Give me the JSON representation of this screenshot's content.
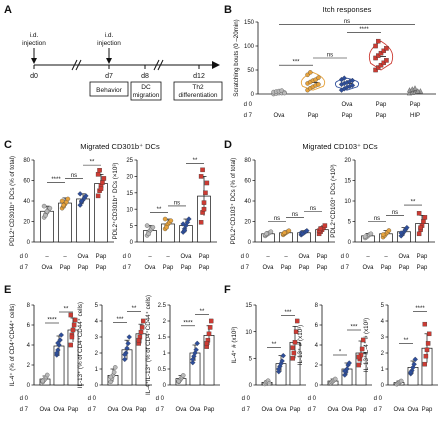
{
  "figure": {
    "panel_letters": [
      "A",
      "B",
      "C",
      "D",
      "E",
      "F"
    ],
    "timeline": {
      "injections": [
        {
          "label_lines": [
            "i.d.",
            "injection"
          ],
          "day": "d0"
        },
        {
          "label_lines": [
            "i.d.",
            "injection"
          ],
          "day": "d7"
        }
      ],
      "days": [
        "d0",
        "d7",
        "d8",
        "d12"
      ],
      "boxes": [
        {
          "lines": [
            "Behavior"
          ]
        },
        {
          "lines": [
            "DC",
            "migration"
          ]
        },
        {
          "lines": [
            "Th2",
            "differentiation"
          ]
        }
      ]
    },
    "colors": {
      "ova": "#b9b9b9",
      "pap_orange": "#e6a23c",
      "pap_blue": "#2e4e9b",
      "red": "#cc3b33",
      "hip": "#9a9a9a"
    },
    "row_labels": {
      "d0": "d 0",
      "d7": "d 7"
    }
  },
  "chart_data": [
    {
      "id": "B",
      "type": "scatter",
      "title": "Itch responses",
      "ylabel": "Scratching bouts (0 –20min)",
      "ylim": [
        0,
        150
      ],
      "yticks": [
        0,
        50,
        100,
        150
      ],
      "treatment_d0": [
        "",
        "",
        "Ova",
        "Pap",
        "Pap"
      ],
      "treatment_d7": [
        "Ova",
        "Pap",
        "Pap",
        "Pap",
        "HIP"
      ],
      "groups": [
        {
          "values": [
            0,
            1,
            2,
            2,
            3,
            4,
            5,
            6,
            7,
            2
          ],
          "mean": 3,
          "color": "ova",
          "shape": "circle",
          "violin": false
        },
        {
          "values": [
            8,
            12,
            15,
            18,
            20,
            22,
            25,
            28,
            30,
            34,
            40,
            45
          ],
          "mean": 24,
          "color": "pap_orange",
          "shape": "circle",
          "violin": true
        },
        {
          "values": [
            8,
            11,
            14,
            16,
            18,
            20,
            22,
            24,
            26,
            28,
            30,
            33
          ],
          "mean": 22,
          "color": "pap_blue",
          "shape": "diamond",
          "violin": true
        },
        {
          "values": [
            50,
            55,
            60,
            65,
            70,
            75,
            80,
            85,
            90,
            95,
            100,
            110
          ],
          "mean": 78,
          "color": "red",
          "shape": "square",
          "violin": true
        },
        {
          "values": [
            2,
            3,
            4,
            5,
            6,
            8,
            10,
            12,
            6
          ],
          "mean": 6,
          "color": "hip",
          "shape": "triangle",
          "violin": false
        }
      ],
      "sig": [
        {
          "from": 0,
          "to": 4,
          "label": "ns",
          "level": 145
        },
        {
          "from": 2,
          "to": 3,
          "label": "****",
          "level": 128
        },
        {
          "from": 0,
          "to": 1,
          "label": "***",
          "level": 60
        },
        {
          "from": 1,
          "to": 2,
          "label": "ns",
          "level": 75
        }
      ]
    },
    {
      "id": "C1",
      "type": "bar",
      "section_title": "Migrated CD301b⁺ DCs",
      "ylabel": "PDL2⁺CD301b⁺ DCs (% of total)",
      "ylim": [
        0,
        80
      ],
      "yticks": [
        0,
        20,
        40,
        60,
        80
      ],
      "treatment_d0": [
        "–",
        "–",
        "Ova",
        "Pap"
      ],
      "treatment_d7": [
        "Ova",
        "Pap",
        "Pap",
        "Pap"
      ],
      "groups": [
        {
          "mean": 30,
          "sd": 5,
          "values": [
            24,
            27,
            29,
            31,
            33,
            35,
            26,
            30
          ],
          "color": "ova",
          "shape": "circle"
        },
        {
          "mean": 38,
          "sd": 5,
          "values": [
            33,
            35,
            37,
            39,
            42,
            40,
            36
          ],
          "color": "pap_orange",
          "shape": "circle"
        },
        {
          "mean": 42,
          "sd": 5,
          "values": [
            36,
            39,
            41,
            43,
            45,
            47,
            40
          ],
          "color": "pap_blue",
          "shape": "diamond"
        },
        {
          "mean": 57,
          "sd": 9,
          "values": [
            45,
            50,
            55,
            58,
            62,
            66,
            70,
            52
          ],
          "color": "red",
          "shape": "square"
        }
      ],
      "sig": [
        {
          "from": 0,
          "to": 1,
          "label": "****",
          "level": 58
        },
        {
          "from": 1,
          "to": 2,
          "label": "ns",
          "level": 62
        },
        {
          "from": 2,
          "to": 3,
          "label": "**",
          "level": 75
        }
      ]
    },
    {
      "id": "C2",
      "type": "bar",
      "ylabel": "PDL2⁺CD301b⁺ DCs (×10³)",
      "ylim": [
        0,
        25
      ],
      "yticks": [
        0,
        5,
        10,
        15,
        20,
        25
      ],
      "treatment_d0": [
        "–",
        "–",
        "Ova",
        "Pap"
      ],
      "treatment_d7": [
        "Ova",
        "Pap",
        "Pap",
        "Pap"
      ],
      "groups": [
        {
          "mean": 3.5,
          "sd": 1.5,
          "values": [
            2,
            3,
            3.5,
            4,
            4.5,
            5,
            2.5
          ],
          "color": "ova",
          "shape": "circle"
        },
        {
          "mean": 5.5,
          "sd": 1.5,
          "values": [
            4,
            5,
            5.5,
            6,
            6.5,
            7,
            4.5
          ],
          "color": "pap_orange",
          "shape": "circle"
        },
        {
          "mean": 5,
          "sd": 2,
          "values": [
            3,
            4,
            5,
            6,
            7,
            5.5,
            3.5
          ],
          "color": "pap_blue",
          "shape": "diamond"
        },
        {
          "mean": 14,
          "sd": 6,
          "values": [
            6,
            9,
            12,
            15,
            18,
            20,
            22,
            10
          ],
          "color": "red",
          "shape": "square"
        }
      ],
      "sig": [
        {
          "from": 0,
          "to": 1,
          "label": "**",
          "level": 9
        },
        {
          "from": 1,
          "to": 2,
          "label": "ns",
          "level": 11
        },
        {
          "from": 2,
          "to": 3,
          "label": "**",
          "level": 24
        }
      ]
    },
    {
      "id": "D1",
      "type": "bar",
      "section_title": "Migrated CD103⁺ DCs",
      "ylabel": "PDL2⁺CD103⁺ DCs (% of total)",
      "ylim": [
        0,
        80
      ],
      "yticks": [
        0,
        20,
        40,
        60,
        80
      ],
      "treatment_d0": [
        "–",
        "–",
        "Ova",
        "Pap"
      ],
      "treatment_d7": [
        "Ova",
        "Pap",
        "Pap",
        "Pap"
      ],
      "groups": [
        {
          "mean": 8,
          "sd": 2,
          "values": [
            6,
            7,
            8,
            9,
            10,
            7,
            8
          ],
          "color": "ova",
          "shape": "circle"
        },
        {
          "mean": 9,
          "sd": 2,
          "values": [
            7,
            8,
            9,
            10,
            11,
            8,
            9
          ],
          "color": "pap_orange",
          "shape": "circle"
        },
        {
          "mean": 9,
          "sd": 2,
          "values": [
            7,
            8,
            9,
            10,
            11,
            9,
            8
          ],
          "color": "pap_blue",
          "shape": "diamond"
        },
        {
          "mean": 12,
          "sd": 3,
          "values": [
            8,
            10,
            12,
            14,
            16,
            11,
            13
          ],
          "color": "red",
          "shape": "square"
        }
      ],
      "sig": [
        {
          "from": 0,
          "to": 1,
          "label": "ns",
          "level": 20
        },
        {
          "from": 1,
          "to": 2,
          "label": "ns",
          "level": 24
        },
        {
          "from": 2,
          "to": 3,
          "label": "ns",
          "level": 30
        }
      ]
    },
    {
      "id": "D2",
      "type": "bar",
      "ylabel": "PDL2⁺CD103⁺ DCs (×10³)",
      "ylim": [
        0,
        20
      ],
      "yticks": [
        0,
        5,
        10,
        15,
        20
      ],
      "treatment_d0": [
        "–",
        "–",
        "Ova",
        "Pap"
      ],
      "treatment_d7": [
        "Ova",
        "Pap",
        "Pap",
        "Pap"
      ],
      "groups": [
        {
          "mean": 1.5,
          "sd": 0.6,
          "values": [
            1,
            1.2,
            1.5,
            1.8,
            2,
            1.3
          ],
          "color": "ova",
          "shape": "circle"
        },
        {
          "mean": 2,
          "sd": 0.8,
          "values": [
            1.2,
            1.6,
            2,
            2.4,
            2.8,
            1.8
          ],
          "color": "pap_orange",
          "shape": "circle"
        },
        {
          "mean": 2.5,
          "sd": 1,
          "values": [
            1.5,
            2,
            2.5,
            3,
            3.5,
            2.2
          ],
          "color": "pap_blue",
          "shape": "diamond"
        },
        {
          "mean": 4.5,
          "sd": 2,
          "values": [
            2,
            3,
            4,
            5,
            6,
            7,
            3.5
          ],
          "color": "red",
          "shape": "square"
        }
      ],
      "sig": [
        {
          "from": 0,
          "to": 1,
          "label": "ns",
          "level": 5
        },
        {
          "from": 1,
          "to": 2,
          "label": "ns",
          "level": 6.5
        },
        {
          "from": 2,
          "to": 3,
          "label": "**",
          "level": 9
        }
      ]
    },
    {
      "id": "E1",
      "type": "bar",
      "ylabel": "IL-4⁺ (% of CD4⁺CD44⁺ cells)",
      "ylim": [
        0,
        8
      ],
      "yticks": [
        0,
        2,
        4,
        6,
        8
      ],
      "treatment_d0": [
        "",
        "",
        ""
      ],
      "treatment_d7": [
        "Ova",
        "Ova",
        "Pap"
      ],
      "groups": [
        {
          "mean": 0.6,
          "sd": 0.3,
          "values": [
            0.3,
            0.5,
            0.6,
            0.8,
            1,
            0.4
          ],
          "color": "ova",
          "shape": "circle"
        },
        {
          "mean": 3.9,
          "sd": 1,
          "values": [
            3,
            3.5,
            4,
            4.5,
            5,
            3.2,
            4.2
          ],
          "color": "pap_blue",
          "shape": "diamond"
        },
        {
          "mean": 5.5,
          "sd": 1.2,
          "values": [
            4,
            5,
            5.5,
            6,
            6.5,
            7,
            4.8
          ],
          "color": "red",
          "shape": "square"
        }
      ],
      "sig": [
        {
          "from": 0,
          "to": 1,
          "label": "****",
          "level": 6.2
        },
        {
          "from": 1,
          "to": 2,
          "label": "**",
          "level": 7.3
        }
      ]
    },
    {
      "id": "E2",
      "type": "bar",
      "ylabel": "IL-13⁺ (% of CD4⁺CD44⁺ cells)",
      "ylim": [
        0,
        5
      ],
      "yticks": [
        0,
        1,
        2,
        3,
        4,
        5
      ],
      "treatment_d0": [
        "",
        "",
        ""
      ],
      "treatment_d7": [
        "Ova",
        "Ova",
        "Pap"
      ],
      "groups": [
        {
          "mean": 0.6,
          "sd": 0.4,
          "values": [
            0.2,
            0.4,
            0.6,
            0.8,
            1.1,
            0.5
          ],
          "color": "ova",
          "shape": "circle"
        },
        {
          "mean": 2.2,
          "sd": 0.6,
          "values": [
            1.6,
            2,
            2.3,
            2.6,
            3,
            1.9
          ],
          "color": "pap_blue",
          "shape": "diamond"
        },
        {
          "mean": 3.2,
          "sd": 0.6,
          "values": [
            2.6,
            3,
            3.3,
            3.6,
            4,
            2.8
          ],
          "color": "red",
          "shape": "square"
        }
      ],
      "sig": [
        {
          "from": 0,
          "to": 1,
          "label": "***",
          "level": 3.9
        },
        {
          "from": 1,
          "to": 2,
          "label": "**",
          "level": 4.6
        }
      ]
    },
    {
      "id": "E3",
      "type": "bar",
      "ylabel": "IL-4⁺IL-13⁺ (% of CD4⁺CD44⁺ cells)",
      "ylim": [
        0,
        2.5
      ],
      "yticks": [
        0,
        0.5,
        1.0,
        1.5,
        2.0,
        2.5
      ],
      "treatment_d0": [
        "",
        "",
        ""
      ],
      "treatment_d7": [
        "Ova",
        "Ova",
        "Pap"
      ],
      "groups": [
        {
          "mean": 0.2,
          "sd": 0.1,
          "values": [
            0.1,
            0.15,
            0.2,
            0.25,
            0.3,
            0.12
          ],
          "color": "ova",
          "shape": "circle"
        },
        {
          "mean": 1.0,
          "sd": 0.25,
          "values": [
            0.7,
            0.9,
            1.0,
            1.1,
            1.3,
            0.8
          ],
          "color": "pap_blue",
          "shape": "diamond"
        },
        {
          "mean": 1.55,
          "sd": 0.3,
          "values": [
            1.2,
            1.4,
            1.6,
            1.8,
            2.0,
            1.3
          ],
          "color": "red",
          "shape": "square"
        }
      ],
      "sig": [
        {
          "from": 0,
          "to": 1,
          "label": "****",
          "level": 1.85
        },
        {
          "from": 1,
          "to": 2,
          "label": "**",
          "level": 2.2
        }
      ]
    },
    {
      "id": "F1",
      "type": "bar",
      "ylabel": "IL-4⁺ # (x10³)",
      "ylim": [
        0,
        15
      ],
      "yticks": [
        0,
        5,
        10,
        15
      ],
      "treatment_d0": [
        "",
        "",
        ""
      ],
      "treatment_d7": [
        "Ova",
        "Ova",
        "Pap"
      ],
      "groups": [
        {
          "mean": 0.5,
          "sd": 0.3,
          "values": [
            0.2,
            0.4,
            0.6,
            0.8,
            0.3
          ],
          "color": "ova",
          "shape": "circle"
        },
        {
          "mean": 4,
          "sd": 1.5,
          "values": [
            2.5,
            3.5,
            4,
            4.5,
            5.5,
            3
          ],
          "color": "pap_blue",
          "shape": "diamond"
        },
        {
          "mean": 8,
          "sd": 3,
          "values": [
            5,
            6,
            8,
            10,
            12,
            7
          ],
          "color": "red",
          "shape": "square"
        }
      ],
      "sig": [
        {
          "from": 0,
          "to": 1,
          "label": "**",
          "level": 7
        },
        {
          "from": 1,
          "to": 2,
          "label": "***",
          "level": 13
        }
      ]
    },
    {
      "id": "F2",
      "type": "bar",
      "ylabel": "IL-13⁺ # (x10³)",
      "ylim": [
        0,
        8
      ],
      "yticks": [
        0,
        2,
        4,
        6,
        8
      ],
      "treatment_d0": [
        "",
        "",
        ""
      ],
      "treatment_d7": [
        "Ova",
        "Ova",
        "Pap"
      ],
      "groups": [
        {
          "mean": 0.4,
          "sd": 0.2,
          "values": [
            0.2,
            0.3,
            0.4,
            0.5,
            0.6
          ],
          "color": "ova",
          "shape": "circle"
        },
        {
          "mean": 1.6,
          "sd": 0.6,
          "values": [
            1,
            1.3,
            1.6,
            2,
            2.2,
            1.4
          ],
          "color": "pap_blue",
          "shape": "diamond"
        },
        {
          "mean": 3.2,
          "sd": 1.2,
          "values": [
            2,
            2.6,
            3,
            3.6,
            4.5,
            2.8
          ],
          "color": "red",
          "shape": "square"
        }
      ],
      "sig": [
        {
          "from": 0,
          "to": 1,
          "label": "*",
          "level": 3.0
        },
        {
          "from": 1,
          "to": 2,
          "label": "***",
          "level": 5.5
        }
      ]
    },
    {
      "id": "F3",
      "type": "bar",
      "ylabel": "IL-13⁺IL-4⁺ # (x10³)",
      "ylim": [
        0,
        5
      ],
      "yticks": [
        0,
        1,
        2,
        3,
        4,
        5
      ],
      "treatment_d0": [
        "",
        "",
        ""
      ],
      "treatment_d7": [
        "Ova",
        "Ova",
        "Pap"
      ],
      "groups": [
        {
          "mean": 0.15,
          "sd": 0.1,
          "values": [
            0.05,
            0.1,
            0.15,
            0.2,
            0.25
          ],
          "color": "ova",
          "shape": "circle"
        },
        {
          "mean": 1.1,
          "sd": 0.4,
          "values": [
            0.7,
            0.9,
            1.1,
            1.3,
            1.6,
            0.8
          ],
          "color": "pap_blue",
          "shape": "diamond"
        },
        {
          "mean": 2.3,
          "sd": 0.9,
          "values": [
            1.3,
            1.8,
            2.2,
            2.6,
            3.2,
            3.8
          ],
          "color": "red",
          "shape": "square"
        }
      ],
      "sig": [
        {
          "from": 0,
          "to": 1,
          "label": "**",
          "level": 2.6
        },
        {
          "from": 1,
          "to": 2,
          "label": "****",
          "level": 4.6
        }
      ]
    }
  ]
}
